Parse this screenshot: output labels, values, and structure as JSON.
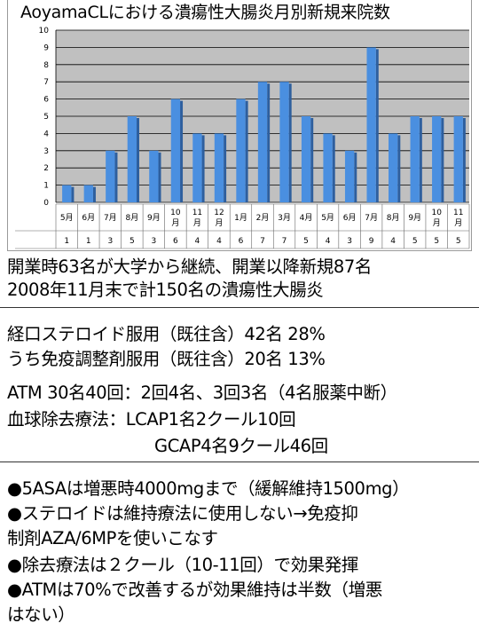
{
  "chart_data": {
    "type": "bar",
    "title": "AoyamaCLにおける潰瘍性大腸炎月別新規来院数",
    "categories": [
      "5月",
      "6月",
      "7月",
      "8月",
      "9月",
      "10月",
      "11月",
      "12月",
      "1月",
      "2月",
      "3月",
      "4月",
      "5月",
      "6月",
      "7月",
      "8月",
      "9月",
      "10月",
      "11月"
    ],
    "values": [
      1,
      1,
      3,
      5,
      3,
      6,
      4,
      4,
      6,
      7,
      7,
      5,
      4,
      3,
      9,
      4,
      5,
      5,
      5
    ],
    "ylim": [
      0,
      10
    ],
    "yticks": [
      0,
      1,
      2,
      3,
      4,
      5,
      6,
      7,
      8,
      9,
      10
    ],
    "grid": true,
    "legend": "none",
    "data_table": true,
    "colors": {
      "bar": "#4a8fe0",
      "plot_background": "#c0c0c0",
      "gridline": "#000000"
    }
  },
  "summary": {
    "line1": "開業時63名が大学から継続、開業以降新規87名",
    "line2": "2008年11月末で計150名の潰瘍性大腸炎"
  },
  "treatment": {
    "line1": "経口ステロイド服用（既往含）42名 28%",
    "line2": "うち免疫調整剤服用（既往含）20名 13%",
    "line3": "ATM 30名40回：2回4名、3回3名（4名服薬中断）",
    "line4": "血球除去療法：LCAP1名2クール10回",
    "line5": "GCAP4名9クール46回"
  },
  "notes": {
    "line1": "●5ASAは増悪時4000mgまで（緩解維持1500mg）",
    "line2": "●ステロイドは維持療法に使用しない→免疫抑",
    "line3": "制剤AZA/6MPを使いこなす",
    "line4": "●除去療法は２クール（10-11回）で効果発揮",
    "line5": "●ATMは70%で改善するが効果維持は半数（増悪",
    "line6": "はない）"
  }
}
